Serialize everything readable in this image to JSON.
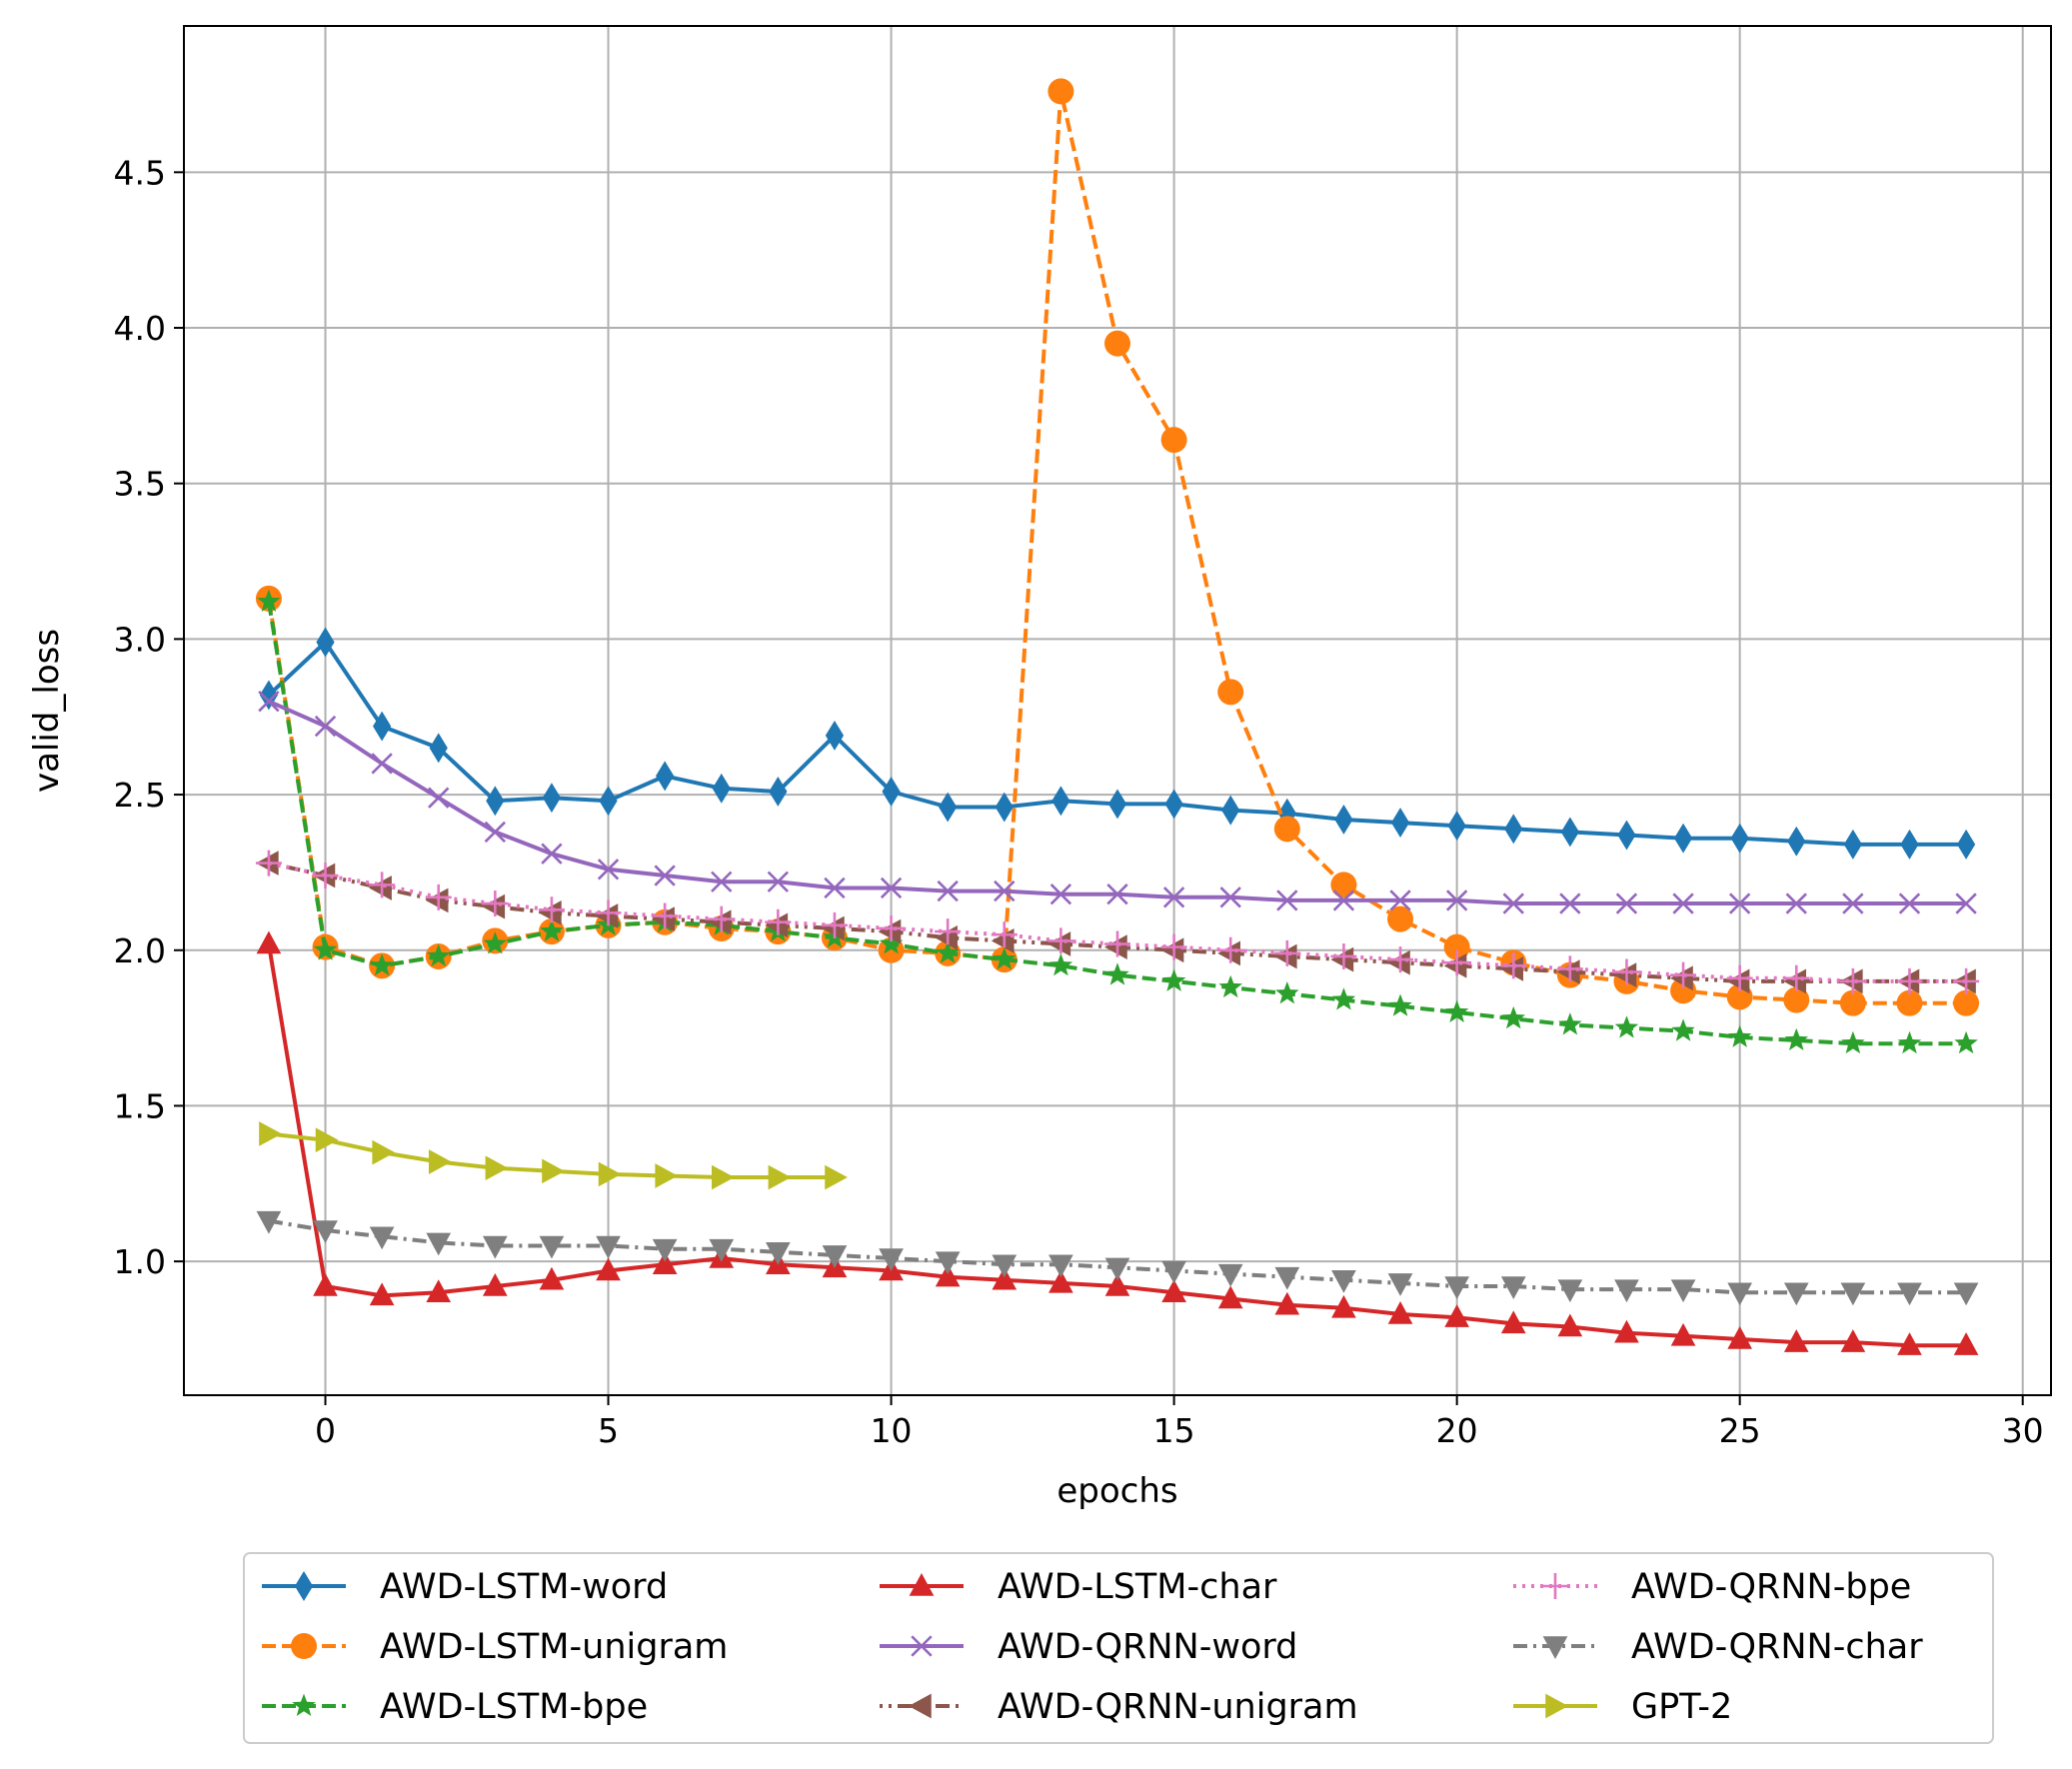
{
  "chart_data": {
    "type": "line",
    "title": "",
    "xlabel": "epochs",
    "ylabel": "valid_loss",
    "xlim": [
      -2.5,
      30.5
    ],
    "ylim": [
      0.57,
      4.97
    ],
    "xticks": [
      0,
      5,
      10,
      15,
      20,
      25,
      30
    ],
    "yticks": [
      1.0,
      1.5,
      2.0,
      2.5,
      3.0,
      3.5,
      4.0,
      4.5
    ],
    "grid": true,
    "legend": {
      "position": "below",
      "columns": 3
    },
    "series": [
      {
        "name": "AWD-LSTM-word",
        "color": "#1f77b4",
        "dash": "solid",
        "marker": "diamond-thin",
        "x": [
          -1,
          0,
          1,
          2,
          3,
          4,
          5,
          6,
          7,
          8,
          9,
          10,
          11,
          12,
          13,
          14,
          15,
          16,
          17,
          18,
          19,
          20,
          21,
          22,
          23,
          24,
          25,
          26,
          27,
          28,
          29
        ],
        "y": [
          2.82,
          2.99,
          2.72,
          2.65,
          2.48,
          2.49,
          2.48,
          2.56,
          2.52,
          2.51,
          2.69,
          2.51,
          2.46,
          2.46,
          2.48,
          2.47,
          2.47,
          2.45,
          2.44,
          2.42,
          2.41,
          2.4,
          2.39,
          2.38,
          2.37,
          2.36,
          2.36,
          2.35,
          2.34,
          2.34,
          2.34
        ]
      },
      {
        "name": "AWD-LSTM-unigram",
        "color": "#ff7f0e",
        "dash": "dashed",
        "marker": "circle",
        "x": [
          -1,
          0,
          1,
          2,
          3,
          4,
          5,
          6,
          7,
          8,
          9,
          10,
          11,
          12,
          13,
          14,
          15,
          16,
          17,
          18,
          19,
          20,
          21,
          22,
          23,
          24,
          25,
          26,
          27,
          28,
          29
        ],
        "y": [
          3.13,
          2.01,
          1.95,
          1.98,
          2.03,
          2.06,
          2.08,
          2.09,
          2.07,
          2.06,
          2.04,
          2.0,
          1.99,
          1.97,
          4.76,
          3.95,
          3.64,
          2.83,
          2.39,
          2.21,
          2.1,
          2.01,
          1.96,
          1.92,
          1.9,
          1.87,
          1.85,
          1.84,
          1.83,
          1.83,
          1.83
        ]
      },
      {
        "name": "AWD-LSTM-bpe",
        "color": "#2ca02c",
        "dash": "dashed",
        "marker": "star",
        "x": [
          -1,
          0,
          1,
          2,
          3,
          4,
          5,
          6,
          7,
          8,
          9,
          10,
          11,
          12,
          13,
          14,
          15,
          16,
          17,
          18,
          19,
          20,
          21,
          22,
          23,
          24,
          25,
          26,
          27,
          28,
          29
        ],
        "y": [
          3.12,
          2.0,
          1.95,
          1.98,
          2.02,
          2.06,
          2.08,
          2.09,
          2.08,
          2.06,
          2.04,
          2.02,
          1.99,
          1.97,
          1.95,
          1.92,
          1.9,
          1.88,
          1.86,
          1.84,
          1.82,
          1.8,
          1.78,
          1.76,
          1.75,
          1.74,
          1.72,
          1.71,
          1.7,
          1.7,
          1.7
        ]
      },
      {
        "name": "AWD-LSTM-char",
        "color": "#d62728",
        "dash": "solid",
        "marker": "triangle-up",
        "x": [
          -1,
          0,
          1,
          2,
          3,
          4,
          5,
          6,
          7,
          8,
          9,
          10,
          11,
          12,
          13,
          14,
          15,
          16,
          17,
          18,
          19,
          20,
          21,
          22,
          23,
          24,
          25,
          26,
          27,
          28,
          29
        ],
        "y": [
          2.02,
          0.92,
          0.89,
          0.9,
          0.92,
          0.94,
          0.97,
          0.99,
          1.01,
          0.99,
          0.98,
          0.97,
          0.95,
          0.94,
          0.93,
          0.92,
          0.9,
          0.88,
          0.86,
          0.85,
          0.83,
          0.82,
          0.8,
          0.79,
          0.77,
          0.76,
          0.75,
          0.74,
          0.74,
          0.73,
          0.73
        ]
      },
      {
        "name": "AWD-QRNN-word",
        "color": "#9467bd",
        "dash": "solid",
        "marker": "x",
        "x": [
          -1,
          0,
          1,
          2,
          3,
          4,
          5,
          6,
          7,
          8,
          9,
          10,
          11,
          12,
          13,
          14,
          15,
          16,
          17,
          18,
          19,
          20,
          21,
          22,
          23,
          24,
          25,
          26,
          27,
          28,
          29
        ],
        "y": [
          2.8,
          2.72,
          2.6,
          2.49,
          2.38,
          2.31,
          2.26,
          2.24,
          2.22,
          2.22,
          2.2,
          2.2,
          2.19,
          2.19,
          2.18,
          2.18,
          2.17,
          2.17,
          2.16,
          2.16,
          2.16,
          2.16,
          2.15,
          2.15,
          2.15,
          2.15,
          2.15,
          2.15,
          2.15,
          2.15,
          2.15
        ]
      },
      {
        "name": "AWD-QRNN-unigram",
        "color": "#8c564b",
        "dash": "dotted-dash",
        "marker": "triangle-left",
        "x": [
          -1,
          0,
          1,
          2,
          3,
          4,
          5,
          6,
          7,
          8,
          9,
          10,
          11,
          12,
          13,
          14,
          15,
          16,
          17,
          18,
          19,
          20,
          21,
          22,
          23,
          24,
          25,
          26,
          27,
          28,
          29
        ],
        "y": [
          2.28,
          2.24,
          2.2,
          2.16,
          2.14,
          2.12,
          2.11,
          2.1,
          2.09,
          2.08,
          2.07,
          2.06,
          2.04,
          2.03,
          2.02,
          2.01,
          2.0,
          1.99,
          1.98,
          1.97,
          1.96,
          1.95,
          1.94,
          1.93,
          1.92,
          1.91,
          1.9,
          1.9,
          1.9,
          1.9,
          1.9
        ]
      },
      {
        "name": "AWD-QRNN-bpe",
        "color": "#e377c2",
        "dash": "dotted",
        "marker": "plus",
        "x": [
          -1,
          0,
          1,
          2,
          3,
          4,
          5,
          6,
          7,
          8,
          9,
          10,
          11,
          12,
          13,
          14,
          15,
          16,
          17,
          18,
          19,
          20,
          21,
          22,
          23,
          24,
          25,
          26,
          27,
          28,
          29
        ],
        "y": [
          2.28,
          2.24,
          2.21,
          2.17,
          2.15,
          2.13,
          2.12,
          2.11,
          2.1,
          2.09,
          2.08,
          2.07,
          2.06,
          2.05,
          2.03,
          2.02,
          2.01,
          2.0,
          1.99,
          1.98,
          1.97,
          1.96,
          1.95,
          1.94,
          1.93,
          1.92,
          1.91,
          1.91,
          1.9,
          1.9,
          1.9
        ]
      },
      {
        "name": "AWD-QRNN-char",
        "color": "#7f7f7f",
        "dash": "dash-dot",
        "marker": "triangle-down",
        "x": [
          -1,
          0,
          1,
          2,
          3,
          4,
          5,
          6,
          7,
          8,
          9,
          10,
          11,
          12,
          13,
          14,
          15,
          16,
          17,
          18,
          19,
          20,
          21,
          22,
          23,
          24,
          25,
          26,
          27,
          28,
          29
        ],
        "y": [
          1.13,
          1.1,
          1.08,
          1.06,
          1.05,
          1.05,
          1.05,
          1.04,
          1.04,
          1.03,
          1.02,
          1.01,
          1.0,
          0.99,
          0.99,
          0.98,
          0.97,
          0.96,
          0.95,
          0.94,
          0.93,
          0.92,
          0.92,
          0.91,
          0.91,
          0.91,
          0.9,
          0.9,
          0.9,
          0.9,
          0.9
        ]
      },
      {
        "name": "GPT-2",
        "color": "#bcbd22",
        "dash": "solid",
        "marker": "triangle-right",
        "x": [
          -1,
          0,
          1,
          2,
          3,
          4,
          5,
          6,
          7,
          8,
          9
        ],
        "y": [
          1.41,
          1.39,
          1.35,
          1.32,
          1.3,
          1.29,
          1.28,
          1.275,
          1.27,
          1.27,
          1.27
        ]
      }
    ]
  }
}
